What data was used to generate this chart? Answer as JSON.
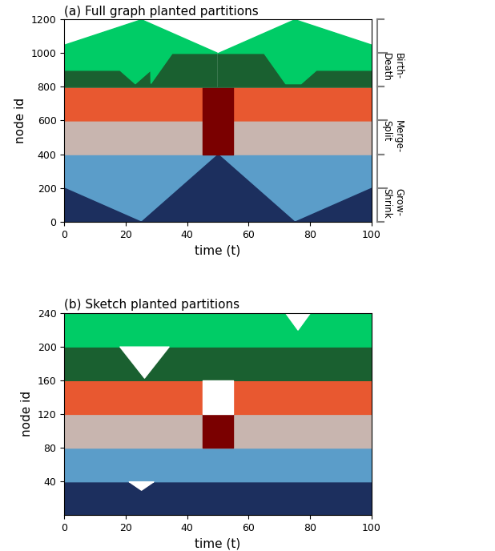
{
  "title_a": "(a) Full graph planted partitions",
  "title_b": "(b) Sketch planted partitions",
  "xlabel": "time (t)",
  "ylabel": "node id",
  "colors": {
    "dark_navy": "#1c2f5e",
    "light_blue": "#5b9dc9",
    "light_pink": "#c8b5af",
    "orange_red": "#e85830",
    "dark_red": "#7a0000",
    "dark_green": "#1a6030",
    "bright_green": "#00cc66",
    "white": "#ffffff"
  }
}
